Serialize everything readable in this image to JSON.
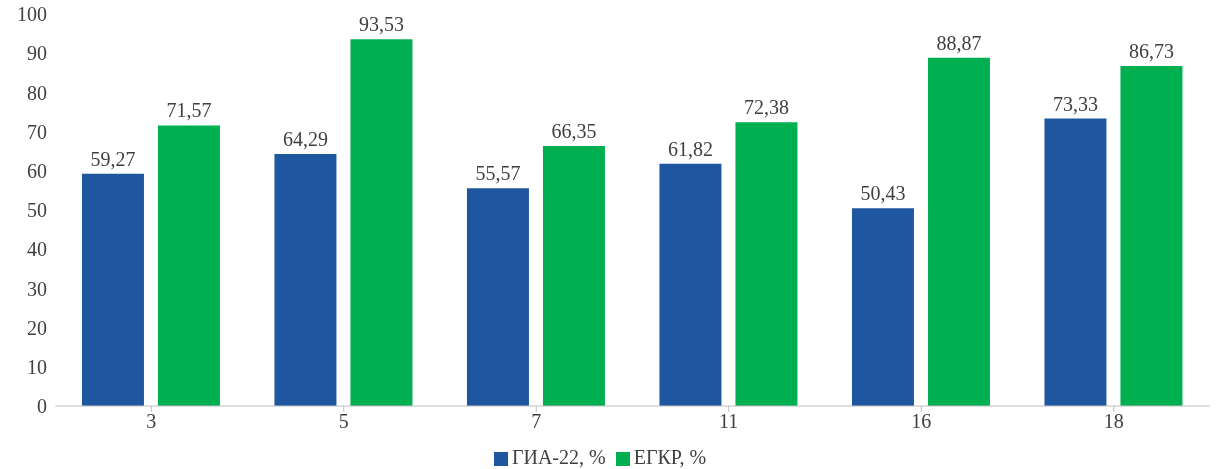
{
  "chart_data": {
    "type": "bar",
    "categories": [
      "3",
      "5",
      "7",
      "11",
      "16",
      "18"
    ],
    "series": [
      {
        "name": "ГИА-22, %",
        "color": "#1f56a0",
        "values": [
          59.27,
          64.29,
          55.57,
          61.82,
          50.43,
          73.33
        ],
        "value_labels": [
          "59,27",
          "64,29",
          "55,57",
          "61,82",
          "50,43",
          "73,33"
        ]
      },
      {
        "name": "ЕГКР, %",
        "color": "#00b050",
        "values": [
          71.57,
          93.53,
          66.35,
          72.38,
          88.87,
          86.73
        ],
        "value_labels": [
          "71,57",
          "93,53",
          "66,35",
          "72,38",
          "88,87",
          "86,73"
        ]
      }
    ],
    "ylim": [
      0,
      100
    ],
    "yticks": [
      0,
      10,
      20,
      30,
      40,
      50,
      60,
      70,
      80,
      90,
      100
    ],
    "grid": false,
    "legend": "bottom"
  }
}
